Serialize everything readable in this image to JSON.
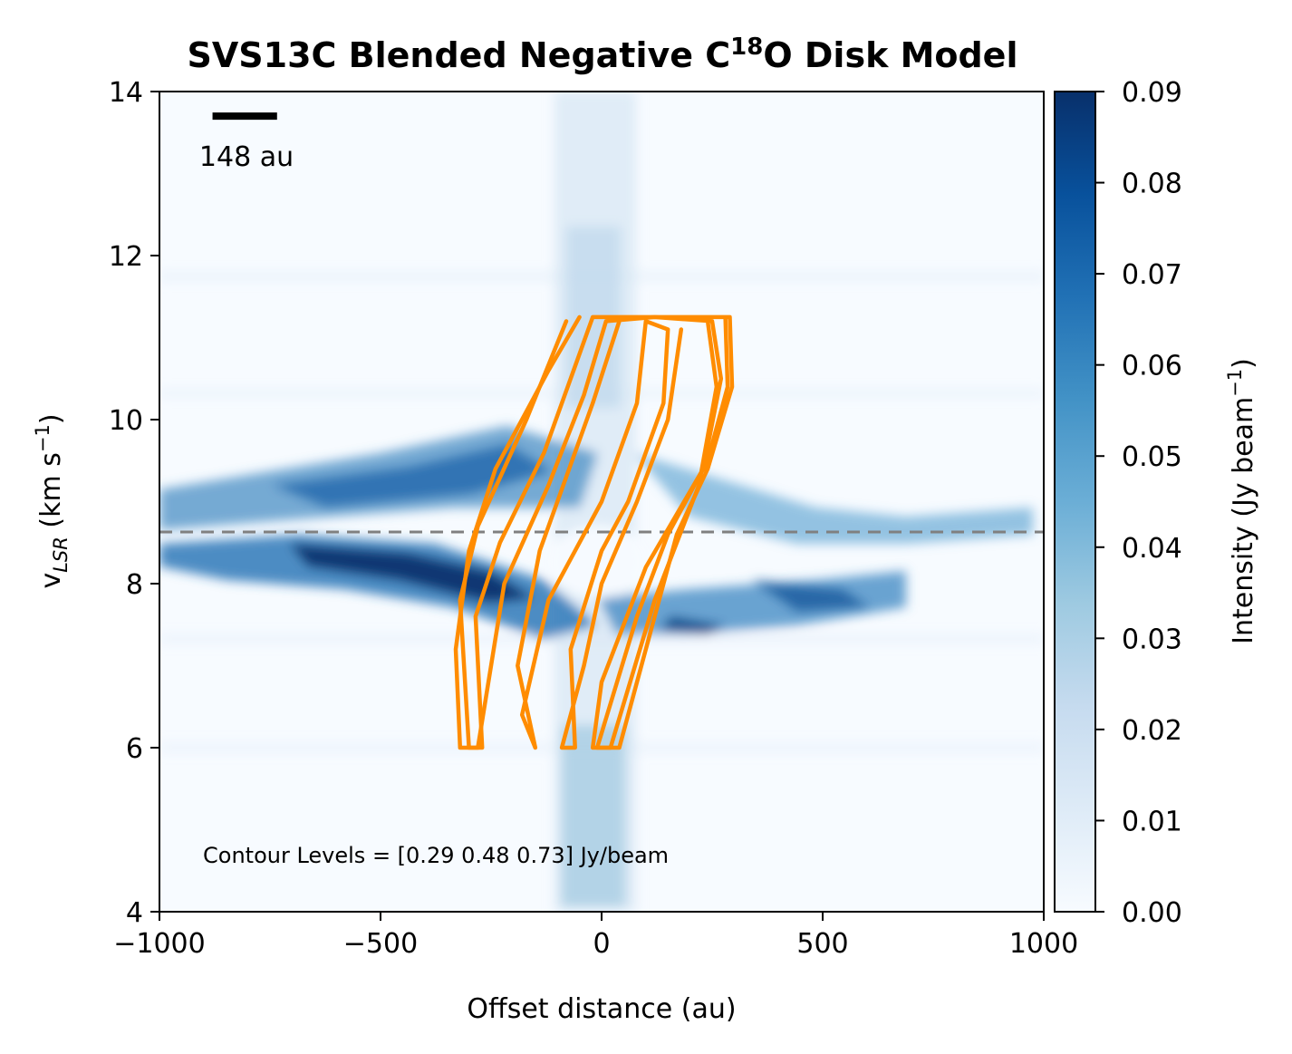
{
  "chart_data": {
    "type": "heatmap",
    "title_main": "SVS13C Blended Negative C",
    "title_sup": "18",
    "title_end": "O Disk Model",
    "xlabel": "Offset distance (au)",
    "ylabel_main": "v",
    "ylabel_sub": "LSR",
    "ylabel_rest": " (km s",
    "ylabel_sup": "−1",
    "ylabel_close": ")",
    "xlim": [
      -1000,
      1000
    ],
    "ylim": [
      4,
      14
    ],
    "x_ticks": [
      -1000,
      -500,
      0,
      500,
      1000
    ],
    "x_tick_labels": [
      "−1000",
      "−500",
      "0",
      "500",
      "1000"
    ],
    "y_ticks": [
      4,
      6,
      8,
      10,
      12,
      14
    ],
    "y_tick_labels": [
      "4",
      "6",
      "8",
      "10",
      "12",
      "14"
    ],
    "colorbar": {
      "label_main": "Intensity (Jy beam",
      "label_sup": "−1",
      "label_close": ")",
      "cmap": "Blues",
      "range": [
        0.0,
        0.09
      ],
      "ticks": [
        0.0,
        0.01,
        0.02,
        0.03,
        0.04,
        0.05,
        0.06,
        0.07,
        0.08,
        0.09
      ],
      "tick_labels": [
        "0.00",
        "0.01",
        "0.02",
        "0.03",
        "0.04",
        "0.05",
        "0.06",
        "0.07",
        "0.08",
        "0.09"
      ]
    },
    "systemic_velocity_line": {
      "y": 8.63,
      "color": "#808080",
      "style": "dashed"
    },
    "scale_bar": {
      "label": "148 au",
      "length_au": 148,
      "x_start": -880,
      "y": 13.7
    },
    "annotation": "Contour Levels = [0.29 0.48 0.73] Jy/beam",
    "contour_color": "#ff8c00",
    "contours": [
      {
        "level": 0.29,
        "points": [
          [
            -50,
            11.25
          ],
          [
            -120,
            10.6
          ],
          [
            -240,
            9.4
          ],
          [
            -300,
            8.4
          ],
          [
            -330,
            7.2
          ],
          [
            -320,
            6.0
          ],
          [
            -270,
            6.0
          ],
          [
            -285,
            7.6
          ],
          [
            -230,
            8.5
          ],
          [
            -130,
            9.6
          ],
          [
            -20,
            11.25
          ],
          [
            60,
            11.25
          ],
          [
            220,
            11.25
          ],
          [
            290,
            11.25
          ],
          [
            295,
            10.4
          ],
          [
            240,
            9.4
          ],
          [
            170,
            8.6
          ],
          [
            120,
            7.6
          ],
          [
            40,
            6.0
          ],
          [
            -10,
            6.0
          ],
          [
            80,
            7.6
          ],
          [
            150,
            8.6
          ],
          [
            240,
            9.5
          ],
          [
            285,
            10.4
          ],
          [
            280,
            11.25
          ]
        ]
      },
      {
        "level": 0.48,
        "points": [
          [
            -80,
            11.2
          ],
          [
            -170,
            10.0
          ],
          [
            -280,
            8.7
          ],
          [
            -320,
            7.8
          ],
          [
            -300,
            6.0
          ],
          [
            -280,
            6.0
          ],
          [
            -220,
            8.0
          ],
          [
            -120,
            9.2
          ],
          [
            -40,
            10.3
          ],
          [
            10,
            11.2
          ],
          [
            120,
            11.25
          ],
          [
            250,
            11.2
          ],
          [
            270,
            10.5
          ],
          [
            230,
            9.4
          ],
          [
            100,
            8.2
          ],
          [
            0,
            6.8
          ],
          [
            -20,
            6.0
          ],
          [
            20,
            6.0
          ],
          [
            120,
            7.8
          ],
          [
            220,
            9.2
          ],
          [
            260,
            10.4
          ],
          [
            240,
            11.2
          ]
        ]
      },
      {
        "level": 0.73,
        "points": [
          [
            40,
            11.2
          ],
          [
            -20,
            10.2
          ],
          [
            -140,
            8.4
          ],
          [
            -190,
            7.0
          ],
          [
            -150,
            6.0
          ],
          [
            -180,
            6.4
          ],
          [
            -120,
            7.8
          ],
          [
            0,
            9.0
          ],
          [
            80,
            10.2
          ],
          [
            100,
            11.2
          ],
          [
            150,
            11.1
          ],
          [
            140,
            10.2
          ],
          [
            60,
            9.0
          ],
          [
            0,
            8.4
          ],
          [
            -70,
            7.2
          ],
          [
            -60,
            6.0
          ],
          [
            -90,
            6.0
          ],
          [
            -40,
            7.0
          ],
          [
            0,
            8.0
          ],
          [
            80,
            9.0
          ],
          [
            150,
            10.0
          ],
          [
            180,
            11.1
          ]
        ]
      }
    ]
  }
}
